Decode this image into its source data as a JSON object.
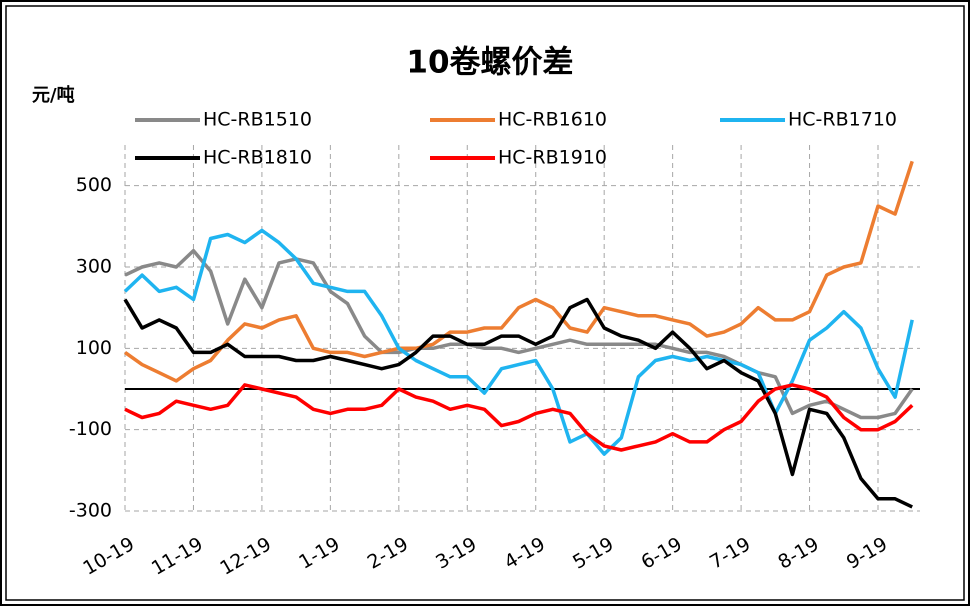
{
  "chart_data": {
    "type": "line",
    "title": "10卷螺价差",
    "y_label": "元/吨",
    "categories": [
      "10-19",
      null,
      null,
      null,
      "11-19",
      null,
      null,
      null,
      "12-19",
      null,
      null,
      null,
      "1-19",
      null,
      null,
      null,
      "2-19",
      null,
      null,
      null,
      "3-19",
      null,
      null,
      null,
      "4-19",
      null,
      null,
      null,
      "5-19",
      null,
      null,
      null,
      "6-19",
      null,
      null,
      null,
      "7-19",
      null,
      null,
      null,
      "8-19",
      null,
      null,
      null,
      "9-19",
      null,
      null
    ],
    "series": [
      {
        "name": "HC-RB1510",
        "color": "#898989",
        "values": [
          280,
          300,
          310,
          300,
          340,
          290,
          160,
          270,
          200,
          310,
          320,
          310,
          240,
          210,
          130,
          90,
          90,
          100,
          100,
          110,
          110,
          100,
          100,
          90,
          100,
          110,
          120,
          110,
          110,
          110,
          110,
          110,
          100,
          90,
          90,
          80,
          60,
          40,
          30,
          -60,
          -40,
          -30,
          -50,
          -70,
          -70,
          -60,
          0
        ]
      },
      {
        "name": "HC-RB1610",
        "color": "#ed7d31",
        "values": [
          90,
          60,
          40,
          20,
          50,
          70,
          120,
          160,
          150,
          170,
          180,
          100,
          90,
          90,
          80,
          90,
          100,
          100,
          110,
          140,
          140,
          150,
          150,
          200,
          220,
          200,
          150,
          140,
          200,
          190,
          180,
          180,
          170,
          160,
          130,
          140,
          160,
          200,
          170,
          170,
          190,
          280,
          300,
          310,
          450,
          430,
          560
        ]
      },
      {
        "name": "HC-RB1710",
        "color": "#1fb4f0",
        "values": [
          240,
          280,
          240,
          250,
          220,
          370,
          380,
          360,
          390,
          360,
          320,
          260,
          250,
          240,
          240,
          180,
          100,
          70,
          50,
          30,
          30,
          -10,
          50,
          60,
          70,
          0,
          -130,
          -110,
          -160,
          -120,
          30,
          70,
          80,
          70,
          80,
          70,
          60,
          40,
          -60,
          20,
          120,
          150,
          190,
          150,
          50,
          -20,
          170
        ]
      },
      {
        "name": "HC-RB1810",
        "color": "#000000",
        "values": [
          220,
          150,
          170,
          150,
          90,
          90,
          110,
          80,
          80,
          80,
          70,
          70,
          80,
          70,
          60,
          50,
          60,
          90,
          130,
          130,
          110,
          110,
          130,
          130,
          110,
          130,
          200,
          220,
          150,
          130,
          120,
          100,
          140,
          100,
          50,
          70,
          40,
          20,
          -60,
          -210,
          -50,
          -60,
          -120,
          -220,
          -270,
          -270,
          -290
        ]
      },
      {
        "name": "HC-RB1910",
        "color": "#ff0000",
        "values": [
          -50,
          -70,
          -60,
          -30,
          -40,
          -50,
          -40,
          10,
          0,
          -10,
          -20,
          -50,
          -60,
          -50,
          -50,
          -40,
          0,
          -20,
          -30,
          -50,
          -40,
          -50,
          -90,
          -80,
          -60,
          -50,
          -60,
          -110,
          -140,
          -150,
          -140,
          -130,
          -110,
          -130,
          -130,
          -100,
          -80,
          -30,
          0,
          10,
          0,
          -20,
          -70,
          -100,
          -100,
          -80,
          -40
        ]
      }
    ],
    "ylim": [
      -300,
      600
    ],
    "yticks": [
      -300,
      -100,
      100,
      300,
      500
    ],
    "grid": true
  }
}
